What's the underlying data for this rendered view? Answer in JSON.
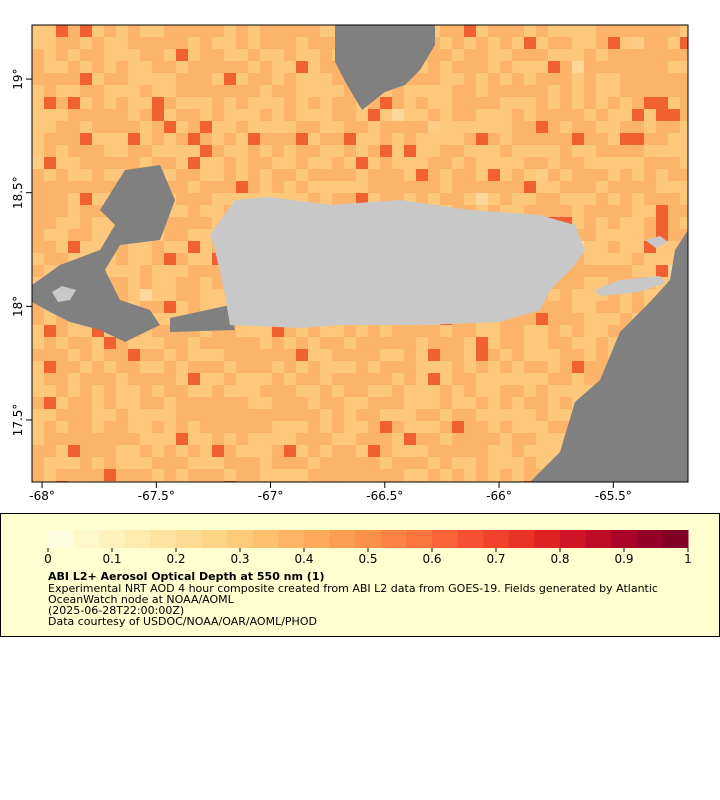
{
  "map": {
    "xlim": [
      -68.044,
      -65.173
    ],
    "ylim": [
      17.227,
      19.238
    ],
    "xticks": [
      {
        "value": -68,
        "label": "-68°"
      },
      {
        "value": -67.5,
        "label": "-67.5°"
      },
      {
        "value": -67,
        "label": "-67°"
      },
      {
        "value": -66.5,
        "label": "-66.5°"
      },
      {
        "value": -66,
        "label": "-66°"
      },
      {
        "value": -65.5,
        "label": "-65.5°"
      }
    ],
    "yticks": [
      {
        "value": 17.5,
        "label": "17.5°"
      },
      {
        "value": 18,
        "label": "18°"
      },
      {
        "value": 18.5,
        "label": "18.5°"
      },
      {
        "value": 19,
        "label": "19°"
      }
    ]
  },
  "colorbar": {
    "range": [
      0,
      1
    ],
    "ticks": [
      0,
      0.1,
      0.2,
      0.3,
      0.4,
      0.5,
      0.6,
      0.7,
      0.8,
      0.9,
      1
    ],
    "colors": [
      "#fffde0",
      "#fff8c8",
      "#fff2bc",
      "#ffebad",
      "#fee3a0",
      "#fedb92",
      "#fdd385",
      "#fdca79",
      "#fdc06e",
      "#fdb564",
      "#fdaa5a",
      "#fc9e51",
      "#fc914a",
      "#fc8343",
      "#fb733d",
      "#fa6337",
      "#f65231",
      "#f0422b",
      "#e83226",
      "#de2224",
      "#d01526",
      "#be0b28",
      "#aa0428",
      "#950128",
      "#800026"
    ]
  },
  "caption": {
    "title": "ABI L2+ Aerosol Optical Depth at 550 nm (1)",
    "lines": [
      "Experimental NRT AOD 4 hour composite created from ABI L2 data from GOES-19. Fields generated by Atlantic",
      "OceanWatch node at NOAA/AOML",
      "(2025-06-28T22:00:00Z)",
      "Data courtesy of USDOC/NOAA/OAR/AOML/PHOD"
    ]
  }
}
